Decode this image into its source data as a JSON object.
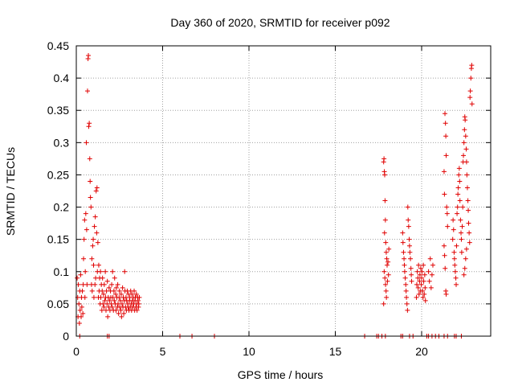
{
  "chart_data": {
    "type": "scatter",
    "title": "Day 360 of 2020, SRMTID for receiver p092",
    "xlabel": "GPS time / hours",
    "ylabel": "SRMTID / TECUs",
    "xlim": [
      0,
      24
    ],
    "ylim": [
      0,
      0.45
    ],
    "xticks": [
      0,
      5,
      10,
      15,
      20
    ],
    "xtick_labels": [
      "0",
      "5",
      "10",
      "15",
      "20"
    ],
    "yticks": [
      0,
      0.05,
      0.1,
      0.15,
      0.2,
      0.25,
      0.3,
      0.35,
      0.4,
      0.45
    ],
    "ytick_labels": [
      "0",
      "0.05",
      "0.1",
      "0.15",
      "0.2",
      "0.25",
      "0.3",
      "0.35",
      "0.4",
      "0.45"
    ],
    "grid": true,
    "marker": "+",
    "color": "#e00000",
    "series": [
      {
        "name": "SRMTID",
        "points": [
          [
            0.05,
            0.09
          ],
          [
            0.08,
            0.06
          ],
          [
            0.1,
            0.03
          ],
          [
            0.12,
            0.08
          ],
          [
            0.15,
            0.05
          ],
          [
            0.18,
            0.02
          ],
          [
            0.2,
            0.07
          ],
          [
            0.22,
            0.04
          ],
          [
            0.25,
            0.095
          ],
          [
            0.28,
            0.03
          ],
          [
            0.3,
            0.06
          ],
          [
            0.32,
            0.045
          ],
          [
            0.35,
            0.07
          ],
          [
            0.38,
            0.035
          ],
          [
            0.4,
            0.08
          ],
          [
            0.42,
            0.12
          ],
          [
            0.45,
            0.15
          ],
          [
            0.48,
            0.18
          ],
          [
            0.5,
            0.06
          ],
          [
            0.52,
            0.1
          ],
          [
            0.55,
            0.19
          ],
          [
            0.58,
            0.3
          ],
          [
            0.6,
            0.165
          ],
          [
            0.62,
            0.08
          ],
          [
            0.65,
            0.38
          ],
          [
            0.68,
            0.43
          ],
          [
            0.7,
            0.435
          ],
          [
            0.72,
            0.325
          ],
          [
            0.75,
            0.33
          ],
          [
            0.78,
            0.275
          ],
          [
            0.8,
            0.24
          ],
          [
            0.82,
            0.215
          ],
          [
            0.85,
            0.2
          ],
          [
            0.88,
            0.08
          ],
          [
            0.9,
            0.12
          ],
          [
            0.92,
            0.07
          ],
          [
            0.95,
            0.14
          ],
          [
            0.98,
            0.15
          ],
          [
            1.0,
            0.11
          ],
          [
            1.02,
            0.06
          ],
          [
            1.05,
            0.17
          ],
          [
            1.08,
            0.08
          ],
          [
            1.1,
            0.185
          ],
          [
            1.12,
            0.09
          ],
          [
            1.15,
            0.225
          ],
          [
            1.18,
            0.16
          ],
          [
            1.2,
            0.23
          ],
          [
            1.22,
            0.1
          ],
          [
            1.25,
            0.145
          ],
          [
            1.28,
            0.06
          ],
          [
            1.3,
            0.11
          ],
          [
            1.32,
            0.07
          ],
          [
            1.35,
            0.09
          ],
          [
            1.38,
            0.05
          ],
          [
            1.4,
            0.1
          ],
          [
            1.42,
            0.06
          ],
          [
            1.45,
            0.08
          ],
          [
            1.48,
            0.04
          ],
          [
            1.5,
            0.07
          ],
          [
            1.52,
            0.09
          ],
          [
            1.55,
            0.05
          ],
          [
            1.58,
            0.065
          ],
          [
            1.6,
            0.045
          ],
          [
            1.62,
            0.08
          ],
          [
            1.65,
            0.055
          ],
          [
            1.68,
            0.1
          ],
          [
            1.7,
            0.06
          ],
          [
            1.72,
            0.04
          ],
          [
            1.75,
            0.07
          ],
          [
            1.78,
            0.05
          ],
          [
            1.8,
            0.085
          ],
          [
            1.82,
            0.03
          ],
          [
            1.85,
            0.06
          ],
          [
            1.88,
            0.045
          ],
          [
            1.9,
            0.075
          ],
          [
            1.92,
            0.055
          ],
          [
            1.95,
            0.04
          ],
          [
            1.98,
            0.07
          ],
          [
            2.0,
            0.06
          ],
          [
            2.02,
            0.05
          ],
          [
            2.05,
            0.08
          ],
          [
            2.08,
            0.045
          ],
          [
            2.1,
            0.1
          ],
          [
            2.12,
            0.06
          ],
          [
            2.15,
            0.04
          ],
          [
            2.18,
            0.07
          ],
          [
            2.2,
            0.055
          ],
          [
            2.22,
            0.09
          ],
          [
            2.25,
            0.05
          ],
          [
            2.28,
            0.065
          ],
          [
            2.3,
            0.04
          ],
          [
            2.32,
            0.075
          ],
          [
            2.35,
            0.06
          ],
          [
            2.38,
            0.045
          ],
          [
            2.4,
            0.08
          ],
          [
            2.42,
            0.05
          ],
          [
            2.45,
            0.035
          ],
          [
            2.48,
            0.06
          ],
          [
            2.5,
            0.07
          ],
          [
            2.52,
            0.045
          ],
          [
            2.55,
            0.055
          ],
          [
            2.58,
            0.04
          ],
          [
            2.6,
            0.065
          ],
          [
            2.62,
            0.03
          ],
          [
            2.65,
            0.05
          ],
          [
            2.68,
            0.075
          ],
          [
            2.7,
            0.045
          ],
          [
            2.72,
            0.06
          ],
          [
            2.75,
            0.035
          ],
          [
            2.78,
            0.055
          ],
          [
            2.8,
            0.1
          ],
          [
            2.82,
            0.07
          ],
          [
            2.85,
            0.045
          ],
          [
            2.88,
            0.06
          ],
          [
            2.9,
            0.04
          ],
          [
            2.92,
            0.055
          ],
          [
            2.95,
            0.07
          ],
          [
            2.98,
            0.05
          ],
          [
            3.0,
            0.045
          ],
          [
            3.02,
            0.065
          ],
          [
            3.05,
            0.04
          ],
          [
            3.08,
            0.055
          ],
          [
            3.1,
            0.06
          ],
          [
            3.12,
            0.045
          ],
          [
            3.15,
            0.07
          ],
          [
            3.18,
            0.05
          ],
          [
            3.2,
            0.04
          ],
          [
            3.22,
            0.065
          ],
          [
            3.25,
            0.055
          ],
          [
            3.28,
            0.045
          ],
          [
            3.3,
            0.06
          ],
          [
            3.32,
            0.05
          ],
          [
            3.35,
            0.07
          ],
          [
            3.38,
            0.04
          ],
          [
            3.4,
            0.055
          ],
          [
            3.42,
            0.06
          ],
          [
            3.45,
            0.045
          ],
          [
            3.48,
            0.065
          ],
          [
            3.5,
            0.05
          ],
          [
            3.52,
            0.04
          ],
          [
            3.55,
            0.06
          ],
          [
            3.58,
            0.055
          ],
          [
            3.6,
            0.045
          ],
          [
            3.62,
            0.05
          ],
          [
            3.65,
            0.06
          ],
          [
            0.2,
            0
          ],
          [
            1.8,
            0
          ],
          [
            1.9,
            0
          ],
          [
            6.0,
            0
          ],
          [
            6.7,
            0
          ],
          [
            8.0,
            0
          ],
          [
            16.7,
            0
          ],
          [
            17.4,
            0
          ],
          [
            17.5,
            0
          ],
          [
            17.7,
            0
          ],
          [
            17.9,
            0
          ],
          [
            18.8,
            0
          ],
          [
            18.9,
            0
          ],
          [
            19.3,
            0
          ],
          [
            19.5,
            0
          ],
          [
            20.3,
            0
          ],
          [
            20.4,
            0
          ],
          [
            20.6,
            0
          ],
          [
            20.8,
            0
          ],
          [
            21.0,
            0
          ],
          [
            21.3,
            0
          ],
          [
            21.5,
            0
          ],
          [
            21.9,
            0
          ],
          [
            22.0,
            0
          ],
          [
            22.3,
            0
          ],
          [
            17.8,
            0.27
          ],
          [
            17.82,
            0.275
          ],
          [
            17.84,
            0.255
          ],
          [
            17.86,
            0.25
          ],
          [
            17.88,
            0.21
          ],
          [
            17.9,
            0.18
          ],
          [
            17.85,
            0.16
          ],
          [
            17.92,
            0.145
          ],
          [
            17.95,
            0.13
          ],
          [
            17.98,
            0.12
          ],
          [
            18.0,
            0.11
          ],
          [
            17.83,
            0.1
          ],
          [
            17.87,
            0.09
          ],
          [
            17.91,
            0.08
          ],
          [
            17.94,
            0.07
          ],
          [
            17.96,
            0.06
          ],
          [
            17.8,
            0.05
          ],
          [
            18.02,
            0.085
          ],
          [
            18.05,
            0.115
          ],
          [
            18.08,
            0.095
          ],
          [
            18.1,
            0.135
          ],
          [
            18.9,
            0.16
          ],
          [
            18.92,
            0.145
          ],
          [
            18.95,
            0.13
          ],
          [
            18.98,
            0.12
          ],
          [
            19.0,
            0.11
          ],
          [
            19.02,
            0.1
          ],
          [
            19.05,
            0.09
          ],
          [
            19.08,
            0.08
          ],
          [
            19.1,
            0.07
          ],
          [
            19.12,
            0.06
          ],
          [
            19.15,
            0.05
          ],
          [
            19.18,
            0.04
          ],
          [
            19.2,
            0.2
          ],
          [
            19.22,
            0.18
          ],
          [
            19.25,
            0.17
          ],
          [
            19.28,
            0.15
          ],
          [
            19.3,
            0.14
          ],
          [
            19.32,
            0.13
          ],
          [
            19.35,
            0.12
          ],
          [
            19.38,
            0.105
          ],
          [
            19.4,
            0.095
          ],
          [
            19.42,
            0.085
          ],
          [
            19.7,
            0.06
          ],
          [
            19.72,
            0.08
          ],
          [
            19.75,
            0.1
          ],
          [
            19.78,
            0.09
          ],
          [
            19.8,
            0.075
          ],
          [
            19.82,
            0.11
          ],
          [
            19.85,
            0.065
          ],
          [
            19.88,
            0.085
          ],
          [
            19.9,
            0.095
          ],
          [
            19.92,
            0.07
          ],
          [
            19.95,
            0.105
          ],
          [
            19.98,
            0.08
          ],
          [
            20.0,
            0.09
          ],
          [
            20.02,
            0.1
          ],
          [
            20.05,
            0.07
          ],
          [
            20.08,
            0.06
          ],
          [
            20.1,
            0.11
          ],
          [
            20.12,
            0.085
          ],
          [
            20.15,
            0.065
          ],
          [
            20.18,
            0.095
          ],
          [
            20.2,
            0.075
          ],
          [
            20.22,
            0.055
          ],
          [
            20.4,
            0.1
          ],
          [
            20.45,
            0.085
          ],
          [
            20.5,
            0.12
          ],
          [
            20.55,
            0.075
          ],
          [
            20.6,
            0.095
          ],
          [
            20.65,
            0.11
          ],
          [
            21.3,
            0.255
          ],
          [
            21.32,
            0.22
          ],
          [
            21.35,
            0.345
          ],
          [
            21.38,
            0.33
          ],
          [
            21.4,
            0.31
          ],
          [
            21.42,
            0.28
          ],
          [
            21.45,
            0.2
          ],
          [
            21.48,
            0.19
          ],
          [
            21.5,
            0.17
          ],
          [
            21.3,
            0.14
          ],
          [
            21.33,
            0.125
          ],
          [
            21.36,
            0.105
          ],
          [
            21.4,
            0.07
          ],
          [
            21.42,
            0.065
          ],
          [
            21.8,
            0.15
          ],
          [
            21.82,
            0.18
          ],
          [
            21.85,
            0.165
          ],
          [
            21.88,
            0.13
          ],
          [
            21.9,
            0.12
          ],
          [
            21.92,
            0.11
          ],
          [
            21.95,
            0.1
          ],
          [
            21.98,
            0.09
          ],
          [
            22.0,
            0.08
          ],
          [
            22.02,
            0.14
          ],
          [
            22.05,
            0.19
          ],
          [
            22.08,
            0.2
          ],
          [
            22.1,
            0.22
          ],
          [
            22.12,
            0.23
          ],
          [
            22.15,
            0.25
          ],
          [
            22.18,
            0.26
          ],
          [
            22.2,
            0.24
          ],
          [
            22.22,
            0.21
          ],
          [
            22.25,
            0.18
          ],
          [
            22.28,
            0.16
          ],
          [
            22.3,
            0.15
          ],
          [
            22.32,
            0.13
          ],
          [
            22.35,
            0.17
          ],
          [
            22.38,
            0.2
          ],
          [
            22.4,
            0.27
          ],
          [
            22.42,
            0.28
          ],
          [
            22.45,
            0.3
          ],
          [
            22.48,
            0.32
          ],
          [
            22.5,
            0.34
          ],
          [
            22.52,
            0.335
          ],
          [
            22.55,
            0.31
          ],
          [
            22.58,
            0.29
          ],
          [
            22.6,
            0.27
          ],
          [
            22.62,
            0.25
          ],
          [
            22.65,
            0.23
          ],
          [
            22.68,
            0.21
          ],
          [
            22.7,
            0.195
          ],
          [
            22.72,
            0.175
          ],
          [
            22.75,
            0.16
          ],
          [
            22.78,
            0.145
          ],
          [
            22.8,
            0.37
          ],
          [
            22.82,
            0.38
          ],
          [
            22.85,
            0.4
          ],
          [
            22.88,
            0.415
          ],
          [
            22.9,
            0.42
          ],
          [
            22.92,
            0.36
          ],
          [
            22.6,
            0.135
          ],
          [
            22.55,
            0.12
          ],
          [
            22.5,
            0.105
          ],
          [
            22.45,
            0.095
          ]
        ]
      }
    ]
  }
}
